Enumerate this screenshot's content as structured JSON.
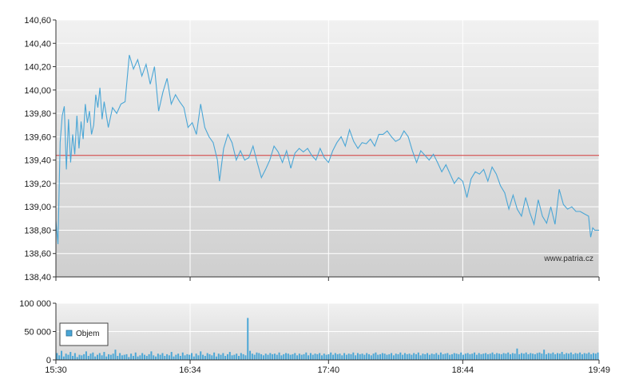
{
  "chart_data": [
    {
      "type": "line",
      "title": "",
      "xlabel": "",
      "ylabel": "",
      "x_ticks": [
        "15:30",
        "16:34",
        "17:40",
        "18:44",
        "19:49"
      ],
      "y_ticks": [
        "140,60",
        "140,40",
        "140,20",
        "140,00",
        "139,80",
        "139,60",
        "139,40",
        "139,20",
        "139,00",
        "138,80",
        "138,60",
        "138,40"
      ],
      "ylim": [
        138.4,
        140.6
      ],
      "xlim": [
        "15:30",
        "19:49"
      ],
      "reference_line": {
        "value": 139.44,
        "color": "#d33b3b"
      },
      "grid": true,
      "source_label": "www.patria.cz",
      "series": [
        {
          "color": "#4aa6d6",
          "points": [
            [
              "15:30",
              138.88
            ],
            [
              "15:31",
              138.68
            ],
            [
              "15:32",
              139.55
            ],
            [
              "15:33",
              139.78
            ],
            [
              "15:34",
              139.86
            ],
            [
              "15:35",
              139.32
            ],
            [
              "15:36",
              139.75
            ],
            [
              "15:37",
              139.38
            ],
            [
              "15:38",
              139.62
            ],
            [
              "15:39",
              139.45
            ],
            [
              "15:40",
              139.78
            ],
            [
              "15:41",
              139.5
            ],
            [
              "15:42",
              139.73
            ],
            [
              "15:43",
              139.58
            ],
            [
              "15:44",
              139.88
            ],
            [
              "15:45",
              139.72
            ],
            [
              "15:46",
              139.82
            ],
            [
              "15:47",
              139.62
            ],
            [
              "15:48",
              139.7
            ],
            [
              "15:49",
              139.96
            ],
            [
              "15:50",
              139.85
            ],
            [
              "15:51",
              140.02
            ],
            [
              "15:52",
              139.75
            ],
            [
              "15:53",
              139.9
            ],
            [
              "15:55",
              139.68
            ],
            [
              "15:57",
              139.85
            ],
            [
              "15:59",
              139.8
            ],
            [
              "16:01",
              139.88
            ],
            [
              "16:03",
              139.9
            ],
            [
              "16:05",
              140.3
            ],
            [
              "16:07",
              140.18
            ],
            [
              "16:09",
              140.26
            ],
            [
              "16:11",
              140.12
            ],
            [
              "16:13",
              140.22
            ],
            [
              "16:15",
              140.05
            ],
            [
              "16:17",
              140.2
            ],
            [
              "16:19",
              139.82
            ],
            [
              "16:21",
              139.98
            ],
            [
              "16:23",
              140.1
            ],
            [
              "16:25",
              139.88
            ],
            [
              "16:27",
              139.96
            ],
            [
              "16:29",
              139.9
            ],
            [
              "16:31",
              139.85
            ],
            [
              "16:33",
              139.68
            ],
            [
              "16:35",
              139.72
            ],
            [
              "16:37",
              139.62
            ],
            [
              "16:39",
              139.88
            ],
            [
              "16:41",
              139.68
            ],
            [
              "16:43",
              139.6
            ],
            [
              "16:45",
              139.55
            ],
            [
              "16:47",
              139.4
            ],
            [
              "16:48",
              139.22
            ],
            [
              "16:50",
              139.5
            ],
            [
              "16:52",
              139.62
            ],
            [
              "16:54",
              139.55
            ],
            [
              "16:56",
              139.4
            ],
            [
              "16:58",
              139.48
            ],
            [
              "17:00",
              139.4
            ],
            [
              "17:02",
              139.42
            ],
            [
              "17:04",
              139.52
            ],
            [
              "17:06",
              139.38
            ],
            [
              "17:08",
              139.25
            ],
            [
              "17:10",
              139.32
            ],
            [
              "17:12",
              139.4
            ],
            [
              "17:14",
              139.52
            ],
            [
              "17:16",
              139.47
            ],
            [
              "17:18",
              139.38
            ],
            [
              "17:20",
              139.48
            ],
            [
              "17:22",
              139.33
            ],
            [
              "17:24",
              139.46
            ],
            [
              "17:26",
              139.5
            ],
            [
              "17:28",
              139.47
            ],
            [
              "17:30",
              139.5
            ],
            [
              "17:32",
              139.44
            ],
            [
              "17:34",
              139.4
            ],
            [
              "17:36",
              139.5
            ],
            [
              "17:38",
              139.42
            ],
            [
              "17:40",
              139.38
            ],
            [
              "17:42",
              139.48
            ],
            [
              "17:44",
              139.55
            ],
            [
              "17:46",
              139.6
            ],
            [
              "17:48",
              139.52
            ],
            [
              "17:50",
              139.66
            ],
            [
              "17:52",
              139.56
            ],
            [
              "17:54",
              139.5
            ],
            [
              "17:56",
              139.55
            ],
            [
              "17:58",
              139.54
            ],
            [
              "18:00",
              139.58
            ],
            [
              "18:02",
              139.52
            ],
            [
              "18:04",
              139.62
            ],
            [
              "18:06",
              139.62
            ],
            [
              "18:08",
              139.65
            ],
            [
              "18:10",
              139.6
            ],
            [
              "18:12",
              139.56
            ],
            [
              "18:14",
              139.58
            ],
            [
              "18:16",
              139.65
            ],
            [
              "18:18",
              139.6
            ],
            [
              "18:20",
              139.48
            ],
            [
              "18:22",
              139.38
            ],
            [
              "18:24",
              139.48
            ],
            [
              "18:26",
              139.44
            ],
            [
              "18:28",
              139.4
            ],
            [
              "18:30",
              139.45
            ],
            [
              "18:32",
              139.38
            ],
            [
              "18:34",
              139.3
            ],
            [
              "18:36",
              139.36
            ],
            [
              "18:38",
              139.28
            ],
            [
              "18:40",
              139.2
            ],
            [
              "18:42",
              139.25
            ],
            [
              "18:44",
              139.22
            ],
            [
              "18:46",
              139.08
            ],
            [
              "18:48",
              139.24
            ],
            [
              "18:50",
              139.3
            ],
            [
              "18:52",
              139.28
            ],
            [
              "18:54",
              139.32
            ],
            [
              "18:56",
              139.22
            ],
            [
              "18:58",
              139.34
            ],
            [
              "19:00",
              139.28
            ],
            [
              "19:02",
              139.18
            ],
            [
              "19:04",
              139.12
            ],
            [
              "19:06",
              138.98
            ],
            [
              "19:08",
              139.1
            ],
            [
              "19:10",
              138.98
            ],
            [
              "19:12",
              138.92
            ],
            [
              "19:14",
              139.08
            ],
            [
              "19:16",
              138.95
            ],
            [
              "19:18",
              138.85
            ],
            [
              "19:20",
              139.06
            ],
            [
              "19:22",
              138.92
            ],
            [
              "19:24",
              138.86
            ],
            [
              "19:26",
              139.0
            ],
            [
              "19:28",
              138.85
            ],
            [
              "19:30",
              139.15
            ],
            [
              "19:32",
              139.02
            ],
            [
              "19:34",
              138.98
            ],
            [
              "19:36",
              139.0
            ],
            [
              "19:38",
              138.96
            ],
            [
              "19:40",
              138.96
            ],
            [
              "19:42",
              138.94
            ],
            [
              "19:44",
              138.92
            ],
            [
              "19:45",
              138.74
            ],
            [
              "19:46",
              138.82
            ],
            [
              "19:47",
              138.8
            ],
            [
              "19:49",
              138.8
            ]
          ]
        }
      ]
    },
    {
      "type": "bar",
      "title": "",
      "xlabel": "",
      "ylabel": "",
      "x_ticks": [
        "15:30",
        "16:34",
        "17:40",
        "18:44",
        "19:49"
      ],
      "y_ticks": [
        "100 000",
        "50 000",
        "0"
      ],
      "ylim": [
        0,
        100000
      ],
      "xlim": [
        "15:30",
        "19:49"
      ],
      "grid": true,
      "legend": {
        "position": "left",
        "label": "Objem"
      },
      "series": [
        {
          "name": "Objem",
          "color": "#4aa6d6",
          "values": [
            12000,
            8000,
            16000,
            6000,
            11000,
            9000,
            14000,
            7000,
            12000,
            5000,
            9000,
            8000,
            10000,
            15000,
            7000,
            11000,
            13000,
            6000,
            9000,
            12000,
            8000,
            14000,
            6000,
            10000,
            9000,
            11000,
            18000,
            7000,
            12000,
            8000,
            9000,
            10000,
            5000,
            11000,
            7000,
            13000,
            6000,
            8000,
            12000,
            9000,
            7000,
            10000,
            15000,
            8000,
            6000,
            11000,
            9000,
            12000,
            7000,
            10000,
            8000,
            14000,
            6000,
            9000,
            11000,
            7000,
            13000,
            8000,
            10000,
            9000,
            12000,
            6000,
            11000,
            8000,
            15000,
            9000,
            7000,
            12000,
            10000,
            8000,
            13000,
            6000,
            11000,
            9000,
            12000,
            7000,
            10000,
            14000,
            8000,
            9000,
            11000,
            7000,
            12000,
            10000,
            8000,
            74000,
            16000,
            11000,
            9000,
            13000,
            12000,
            10000,
            8000,
            11000,
            9000,
            12000,
            10000,
            11000,
            9000,
            13000,
            8000,
            10000,
            12000,
            11000,
            9000,
            10000,
            12000,
            8000,
            11000,
            9000,
            10000,
            13000,
            8000,
            12000,
            9000,
            11000,
            10000,
            12000,
            8000,
            11000,
            9000,
            10000,
            13000,
            9000,
            12000,
            10000,
            11000,
            8000,
            12000,
            9000,
            11000,
            10000,
            13000,
            8000,
            12000,
            10000,
            11000,
            9000,
            12000,
            10000,
            8000,
            11000,
            13000,
            9000,
            10000,
            12000,
            11000,
            9000,
            10000,
            12000,
            8000,
            11000,
            10000,
            13000,
            9000,
            12000,
            10000,
            11000,
            9000,
            12000,
            10000,
            13000,
            8000,
            11000,
            10000,
            12000,
            9000,
            11000,
            10000,
            12000,
            9000,
            13000,
            10000,
            11000,
            12000,
            9000,
            10000,
            12000,
            11000,
            10000,
            13000,
            9000,
            11000,
            12000,
            10000,
            11000,
            13000,
            9000,
            12000,
            10000,
            11000,
            12000,
            10000,
            11000,
            13000,
            10000,
            12000,
            11000,
            10000,
            12000,
            11000,
            13000,
            10000,
            12000,
            11000,
            20000,
            10000,
            12000,
            11000,
            13000,
            10000,
            12000,
            11000,
            10000,
            12000,
            13000,
            11000,
            18000,
            10000,
            12000,
            11000,
            13000,
            10000,
            12000,
            11000,
            14000,
            10000,
            12000,
            11000,
            13000,
            10000,
            12000,
            11000,
            13000,
            10000,
            12000,
            11000,
            13000,
            10000,
            12000,
            11000,
            13000
          ]
        }
      ]
    }
  ]
}
